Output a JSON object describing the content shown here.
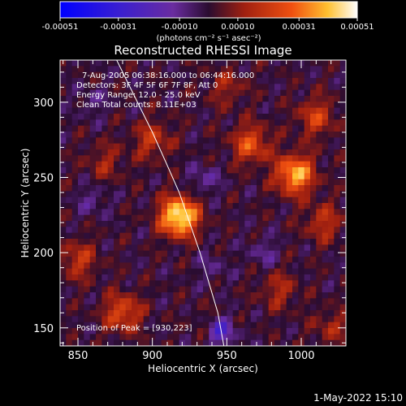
{
  "chart_data": {
    "type": "heatmap",
    "title": "Reconstructed RHESSI Image",
    "xlabel": "Heliocentric X (arcsec)",
    "ylabel": "Heliocentric Y (arcsec)",
    "xlim": [
      838,
      1030
    ],
    "ylim": [
      138,
      328
    ],
    "x_ticks": [
      "850",
      "900",
      "950",
      "1000"
    ],
    "y_ticks": [
      "150",
      "200",
      "250",
      "300"
    ],
    "x_tick_values": [
      850,
      900,
      950,
      1000
    ],
    "y_tick_values": [
      150,
      200,
      250,
      300
    ],
    "colorbar": {
      "ticks": [
        "-0.00051",
        "-0.00031",
        "-0.00010",
        "0.00010",
        "0.00031",
        "0.00051"
      ],
      "tick_values": [
        -0.00051,
        -0.00031,
        -0.0001,
        0.0001,
        0.00031,
        0.00051
      ],
      "range": [
        -0.00051,
        0.00051
      ],
      "units": "(photons cm⁻² s⁻¹ asec⁻²)"
    },
    "annotations": [
      "7-Aug-2005 06:38:16.000 to 06:44:16.000",
      "Detectors: 3F 4F 5F 6F 7F 8F, Att 0",
      "Energy Range: 12.0 - 25.0 keV",
      "Clean    Total counts: 8.11E+03"
    ],
    "peak_label": "Position of Peak = [930,223]",
    "peak": [
      930,
      223
    ],
    "sources": [
      {
        "x": 918,
        "y": 224,
        "value": 0.00051
      },
      {
        "x": 996,
        "y": 252,
        "value": 0.0004
      },
      {
        "x": 966,
        "y": 272,
        "value": 0.00025
      },
      {
        "x": 1010,
        "y": 290,
        "value": 0.0002
      },
      {
        "x": 880,
        "y": 160,
        "value": 0.00024
      },
      {
        "x": 850,
        "y": 195,
        "value": 0.00018
      },
      {
        "x": 900,
        "y": 275,
        "value": 0.00018
      },
      {
        "x": 1015,
        "y": 220,
        "value": 0.00017
      },
      {
        "x": 985,
        "y": 175,
        "value": 0.00014
      },
      {
        "x": 868,
        "y": 260,
        "value": 0.00012
      },
      {
        "x": 950,
        "y": 310,
        "value": 0.00012
      },
      {
        "x": 940,
        "y": 150,
        "value": 0.0001
      },
      {
        "x": 1020,
        "y": 150,
        "value": 0.00012
      }
    ],
    "sinks": [
      {
        "x": 945,
        "y": 148,
        "value": -0.0003
      },
      {
        "x": 935,
        "y": 248,
        "value": -0.00012
      },
      {
        "x": 860,
        "y": 235,
        "value": -0.0001
      },
      {
        "x": 975,
        "y": 200,
        "value": -0.0001
      },
      {
        "x": 940,
        "y": 190,
        "value": -8e-05
      },
      {
        "x": 860,
        "y": 300,
        "value": -8e-05
      }
    ],
    "limb": [
      [
        876,
        328
      ],
      [
        890,
        300
      ],
      [
        900,
        280
      ],
      [
        910,
        258
      ],
      [
        918,
        240
      ],
      [
        925,
        220
      ],
      [
        932,
        200
      ],
      [
        938,
        180
      ],
      [
        944,
        160
      ],
      [
        948,
        138
      ]
    ],
    "grid": false
  },
  "footer": {
    "date": "1-May-2022 15:10"
  }
}
